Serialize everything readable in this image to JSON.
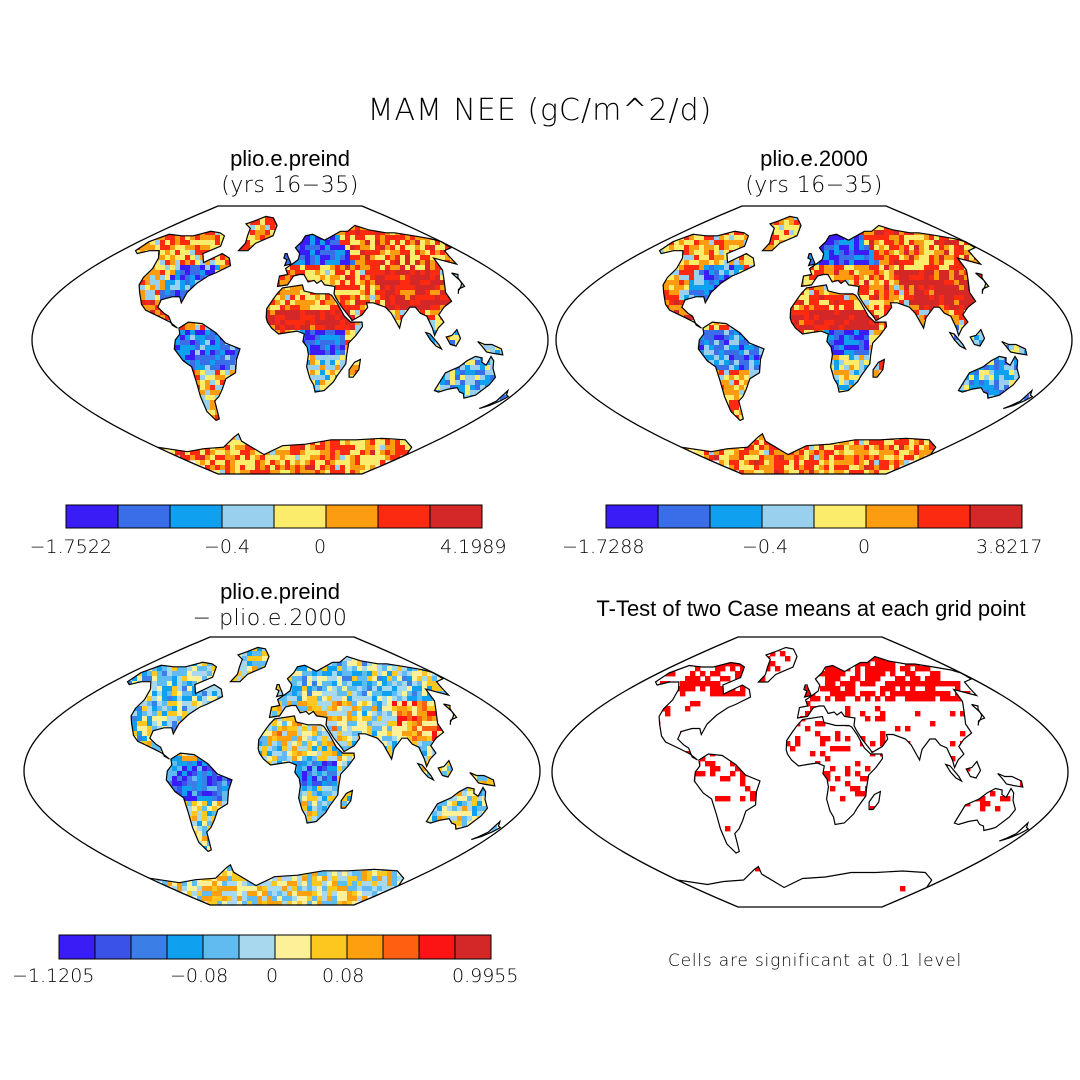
{
  "title": "MAM NEE (gC/m^2/d)",
  "panels": [
    {
      "id": "preind",
      "title": "plio.e.preind",
      "subtitle": "(yrs 16−35)",
      "colorbar": {
        "colors": [
          "#3a1cf6",
          "#3a6ee8",
          "#10a0f0",
          "#98d0ee",
          "#fcec6c",
          "#fc9c10",
          "#fc2a10",
          "#d42828"
        ],
        "tick_labels": [
          "−1.7522",
          "−0.4",
          "0",
          "4.1989"
        ]
      }
    },
    {
      "id": "y2000",
      "title": "plio.e.2000",
      "subtitle": "(yrs 16−35)",
      "colorbar": {
        "colors": [
          "#3a1cf6",
          "#3a6ee8",
          "#10a0f0",
          "#98d0ee",
          "#fcec6c",
          "#fc9c10",
          "#fc2a10",
          "#d42828"
        ],
        "tick_labels": [
          "−1.7288",
          "−0.4",
          "0",
          "3.8217"
        ]
      }
    },
    {
      "id": "diff",
      "title": "plio.e.preind",
      "subtitle": "− plio.e.2000",
      "colorbar": {
        "colors": [
          "#3a1cf6",
          "#3a52e8",
          "#3a7ee6",
          "#10a0f0",
          "#60bcf0",
          "#a8d8ee",
          "#fcf098",
          "#fcc820",
          "#fca010",
          "#fc6010",
          "#fc1414",
          "#d42828"
        ],
        "tick_labels": [
          "−1.1205",
          "−0.08",
          "0",
          "0.08",
          "0.9955"
        ]
      }
    },
    {
      "id": "ttest",
      "title": "T-Test of two Case means at each grid point",
      "note": "Cells are significant at 0.1 level",
      "sig_color": "#ff0000"
    }
  ]
}
